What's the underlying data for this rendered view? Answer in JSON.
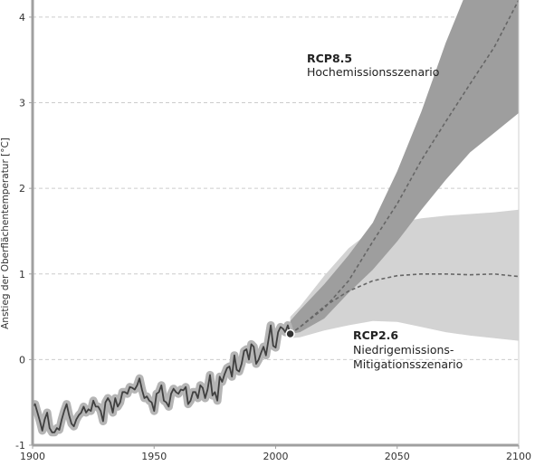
{
  "chart_data": {
    "type": "line",
    "title": "",
    "xlabel": "",
    "ylabel": "Anstieg der Oberflächentemperatur [°C]",
    "xlim": [
      1900,
      2100
    ],
    "ylim": [
      -1,
      4.2
    ],
    "x_ticks": [
      1900,
      1950,
      2000,
      2050,
      2100
    ],
    "y_ticks": [
      -1,
      0,
      1,
      2,
      3,
      4
    ],
    "grid": true,
    "colors": {
      "historical_line": "#404040",
      "historical_halo": "#b5b5b5",
      "rcp85_band": "#9e9e9e",
      "rcp26_band": "#d3d3d3",
      "projection_line": "#666666",
      "grid": "#cccccc",
      "axis": "#a0a0a0"
    },
    "historical": {
      "x": [
        1900,
        1901,
        1902,
        1903,
        1904,
        1905,
        1906,
        1907,
        1908,
        1909,
        1910,
        1911,
        1912,
        1913,
        1914,
        1915,
        1916,
        1917,
        1918,
        1919,
        1920,
        1921,
        1922,
        1923,
        1924,
        1925,
        1926,
        1927,
        1928,
        1929,
        1930,
        1931,
        1932,
        1933,
        1934,
        1935,
        1936,
        1937,
        1938,
        1939,
        1940,
        1941,
        1942,
        1943,
        1944,
        1945,
        1946,
        1947,
        1948,
        1949,
        1950,
        1951,
        1952,
        1953,
        1954,
        1955,
        1956,
        1957,
        1958,
        1959,
        1960,
        1961,
        1962,
        1963,
        1964,
        1965,
        1966,
        1967,
        1968,
        1969,
        1970,
        1971,
        1972,
        1973,
        1974,
        1975,
        1976,
        1977,
        1978,
        1979,
        1980,
        1981,
        1982,
        1983,
        1984,
        1985,
        1986,
        1987,
        1988,
        1989,
        1990,
        1991,
        1992,
        1993,
        1994,
        1995,
        1996,
        1997,
        1998,
        1999,
        2000,
        2001,
        2002,
        2003,
        2004,
        2005,
        2006
      ],
      "y": [
        -0.55,
        -0.52,
        -0.62,
        -0.72,
        -0.83,
        -0.7,
        -0.62,
        -0.8,
        -0.85,
        -0.85,
        -0.8,
        -0.82,
        -0.7,
        -0.6,
        -0.52,
        -0.65,
        -0.75,
        -0.78,
        -0.7,
        -0.65,
        -0.62,
        -0.55,
        -0.62,
        -0.58,
        -0.6,
        -0.48,
        -0.55,
        -0.55,
        -0.6,
        -0.72,
        -0.5,
        -0.45,
        -0.5,
        -0.62,
        -0.45,
        -0.55,
        -0.5,
        -0.38,
        -0.38,
        -0.4,
        -0.32,
        -0.33,
        -0.35,
        -0.3,
        -0.22,
        -0.35,
        -0.45,
        -0.43,
        -0.48,
        -0.5,
        -0.6,
        -0.4,
        -0.38,
        -0.3,
        -0.48,
        -0.5,
        -0.55,
        -0.4,
        -0.34,
        -0.38,
        -0.4,
        -0.35,
        -0.36,
        -0.32,
        -0.52,
        -0.48,
        -0.38,
        -0.38,
        -0.45,
        -0.3,
        -0.33,
        -0.45,
        -0.35,
        -0.18,
        -0.42,
        -0.38,
        -0.48,
        -0.2,
        -0.26,
        -0.17,
        -0.1,
        -0.08,
        -0.2,
        0.05,
        -0.12,
        -0.14,
        -0.05,
        0.1,
        0.12,
        0.0,
        0.18,
        0.15,
        -0.05,
        0.0,
        0.08,
        0.15,
        0.05,
        0.22,
        0.4,
        0.16,
        0.14,
        0.32,
        0.38,
        0.36,
        0.32,
        0.4,
        0.3
      ]
    },
    "series": [
      {
        "name": "RCP8.5",
        "x": [
          2006,
          2010,
          2020,
          2030,
          2040,
          2050,
          2060,
          2070,
          2080,
          2090,
          2100
        ],
        "y": [
          0.3,
          0.38,
          0.6,
          0.92,
          1.38,
          1.82,
          2.33,
          2.78,
          3.22,
          3.65,
          4.2
        ],
        "lower": [
          0.3,
          0.32,
          0.48,
          0.78,
          1.05,
          1.38,
          1.75,
          2.1,
          2.42,
          2.65,
          2.88
        ],
        "upper": [
          0.45,
          0.58,
          0.88,
          1.22,
          1.6,
          2.2,
          2.9,
          3.7,
          4.4,
          5.1,
          5.8
        ]
      },
      {
        "name": "RCP2.6",
        "x": [
          2006,
          2010,
          2020,
          2030,
          2040,
          2050,
          2060,
          2070,
          2080,
          2090,
          2100
        ],
        "y": [
          0.3,
          0.38,
          0.62,
          0.8,
          0.92,
          0.98,
          1.0,
          1.0,
          0.99,
          1.0,
          0.97
        ],
        "lower": [
          0.25,
          0.26,
          0.34,
          0.4,
          0.45,
          0.44,
          0.38,
          0.32,
          0.28,
          0.25,
          0.22
        ],
        "upper": [
          0.5,
          0.62,
          0.98,
          1.3,
          1.52,
          1.6,
          1.65,
          1.68,
          1.7,
          1.72,
          1.75
        ]
      }
    ],
    "current_point": {
      "x": 2006,
      "y": 0.3
    },
    "annotations": [
      {
        "title": "RCP8.5",
        "text": "Hochemissionsszenario"
      },
      {
        "title": "RCP2.6",
        "text": "Niedrigemissions-",
        "text2": "Mitigationsszenario"
      }
    ]
  }
}
